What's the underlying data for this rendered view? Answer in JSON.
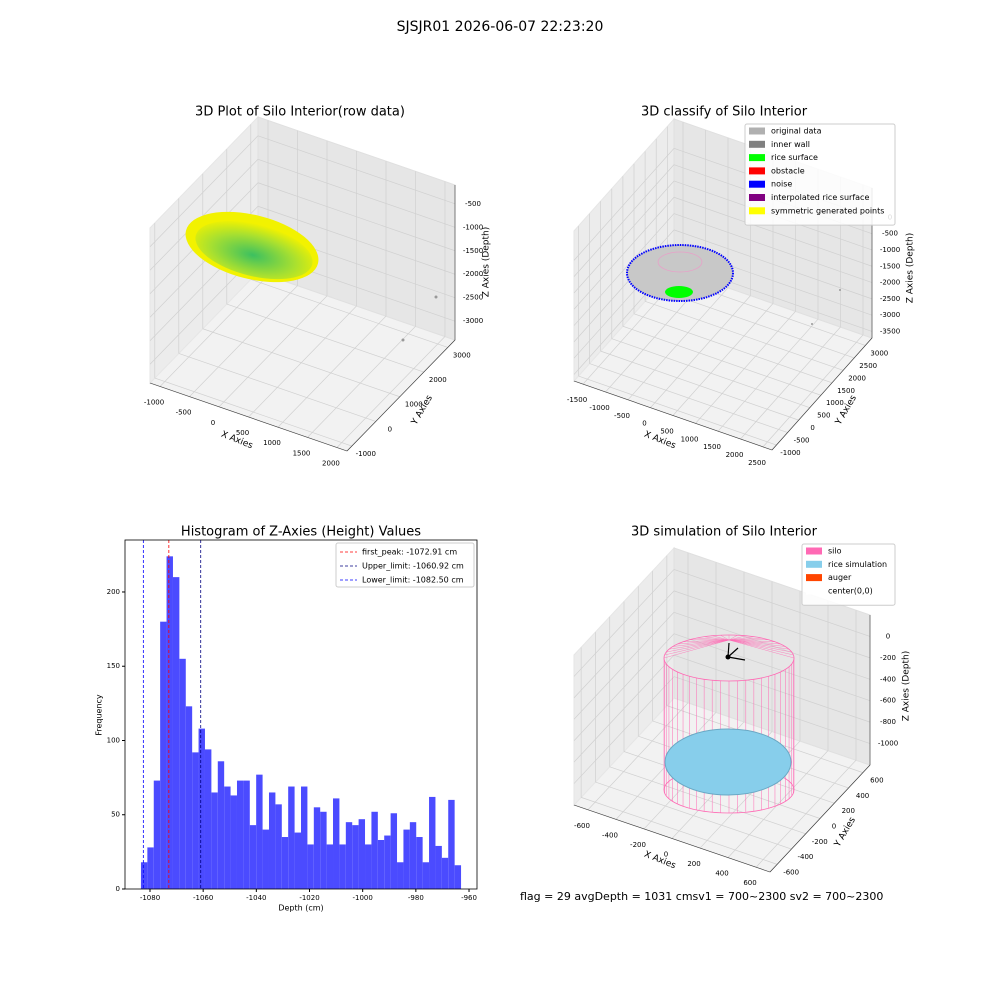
{
  "title": "SJSJR01 2026-06-07 22:23:20",
  "status": "flag = 29  avgDepth = 1031 cmsv1 = 700~2300  sv2 = 700~2300",
  "chart_data": [
    {
      "type": "scatter3d",
      "title": "3D Plot of Silo Interior(row data)",
      "xlabel": "X Axies",
      "ylabel": "Y Axies",
      "zlabel": "Z Axies (Depth)",
      "xlim": [
        -1170,
        2170
      ],
      "ylim": [
        -1200,
        3300
      ],
      "zlim": [
        -3400,
        -100
      ],
      "xticks": [
        -1000,
        -500,
        0,
        500,
        1000,
        1500,
        2000
      ],
      "yticks": [
        -1000,
        0,
        1000,
        2000,
        3000
      ],
      "zticks": [
        -500,
        -1000,
        -1500,
        -2000,
        -2500,
        -3000
      ]
    },
    {
      "type": "scatter3d",
      "title": "3D classify of Silo Interior",
      "xlabel": "X Axies",
      "ylabel": "Y Axies",
      "zlabel": "Z Axies (Depth)",
      "xlim": [
        -1700,
        2700
      ],
      "ylim": [
        -1200,
        3300
      ],
      "zlim": [
        -3700,
        900
      ],
      "xticks": [
        -1500,
        -1000,
        -500,
        0,
        500,
        1000,
        1500,
        2000,
        2500
      ],
      "yticks": [
        -1000,
        -500,
        0,
        500,
        1000,
        1500,
        2000,
        2500,
        3000
      ],
      "zticks": [
        0,
        -500,
        -1000,
        -1500,
        -2000,
        -2500,
        -3000,
        -3500
      ],
      "legend": [
        {
          "name": "original data",
          "color": "#b0b0b0"
        },
        {
          "name": "inner wall",
          "color": "#808080"
        },
        {
          "name": "rice surface",
          "color": "#00ff00"
        },
        {
          "name": "obstacle",
          "color": "#ff0000"
        },
        {
          "name": "noise",
          "color": "#0000ff"
        },
        {
          "name": "interpolated rice surface",
          "color": "#800080"
        },
        {
          "name": "symmetric generated points",
          "color": "#ffff00"
        }
      ]
    },
    {
      "type": "histogram",
      "title": "Histogram of Z-Axies (Height) Values",
      "xlabel": "Depth (cm)",
      "ylabel": "Frequency",
      "color": "#4b4bff",
      "xlim": [
        -1089.4,
        -957
      ],
      "ylim": [
        0,
        235
      ],
      "xticks": [
        -1080,
        -1060,
        -1040,
        -1020,
        -1000,
        -980,
        -960
      ],
      "yticks": [
        0,
        50,
        100,
        150,
        200
      ],
      "bins": [
        -1083.4,
        -1080.99,
        -1078.58,
        -1076.18,
        -1073.77,
        -1071.36,
        -1068.95,
        -1066.54,
        -1064.14,
        -1061.73,
        -1059.32,
        -1056.91,
        -1054.5,
        -1052.1,
        -1049.69,
        -1047.28,
        -1044.87,
        -1042.46,
        -1040.06,
        -1037.65,
        -1035.24,
        -1032.83,
        -1030.42,
        -1028.02,
        -1025.61,
        -1023.2,
        -1020.79,
        -1018.38,
        -1015.98,
        -1013.57,
        -1011.16,
        -1008.75,
        -1006.34,
        -1003.94,
        -1001.53,
        -999.12,
        -996.71,
        -994.3,
        -991.9,
        -989.49,
        -987.08,
        -984.67,
        -982.26,
        -979.86,
        -977.45,
        -975.04,
        -972.63,
        -970.22,
        -967.82,
        -965.41,
        -963.0
      ],
      "values": [
        18,
        28,
        73,
        180,
        224,
        210,
        155,
        123,
        92,
        108,
        94,
        65,
        86,
        69,
        63,
        73,
        73,
        43,
        77,
        40,
        65,
        57,
        35,
        69,
        38,
        69,
        30,
        55,
        52,
        30,
        61,
        30,
        45,
        43,
        47,
        30,
        52,
        33,
        36,
        51,
        18,
        40,
        45,
        35,
        18,
        62,
        29,
        21,
        60,
        16
      ],
      "vlines": [
        {
          "label": "first_peak: -1072.91 cm",
          "value": -1072.91,
          "color": "#ff0000"
        },
        {
          "label": "Upper_limit: -1060.92 cm",
          "value": -1060.92,
          "color": "#000080"
        },
        {
          "label": "Lower_limit: -1082.50 cm",
          "value": -1082.5,
          "color": "#0000ff"
        }
      ]
    },
    {
      "type": "scatter3d",
      "title": "3D simulation of Silo Interior",
      "xlabel": "X Axies",
      "ylabel": "Y Axies",
      "zlabel": "Z Axies (Depth)",
      "xlim": [
        -700,
        700
      ],
      "ylim": [
        -700,
        700
      ],
      "zlim": [
        -1200,
        200
      ],
      "xticks": [
        -600,
        -400,
        -200,
        0,
        200,
        400,
        600
      ],
      "yticks": [
        -600,
        -400,
        -200,
        0,
        200,
        400,
        600
      ],
      "zticks": [
        0,
        -200,
        -400,
        -600,
        -800,
        -1000
      ],
      "legend": [
        {
          "name": "silo",
          "color": "#ff69b4"
        },
        {
          "name": "rice simulation",
          "color": "#87ceeb"
        },
        {
          "name": "auger",
          "color": "#ff4500"
        },
        {
          "name": "center(0,0)",
          "color": "#ffffff"
        }
      ]
    }
  ]
}
